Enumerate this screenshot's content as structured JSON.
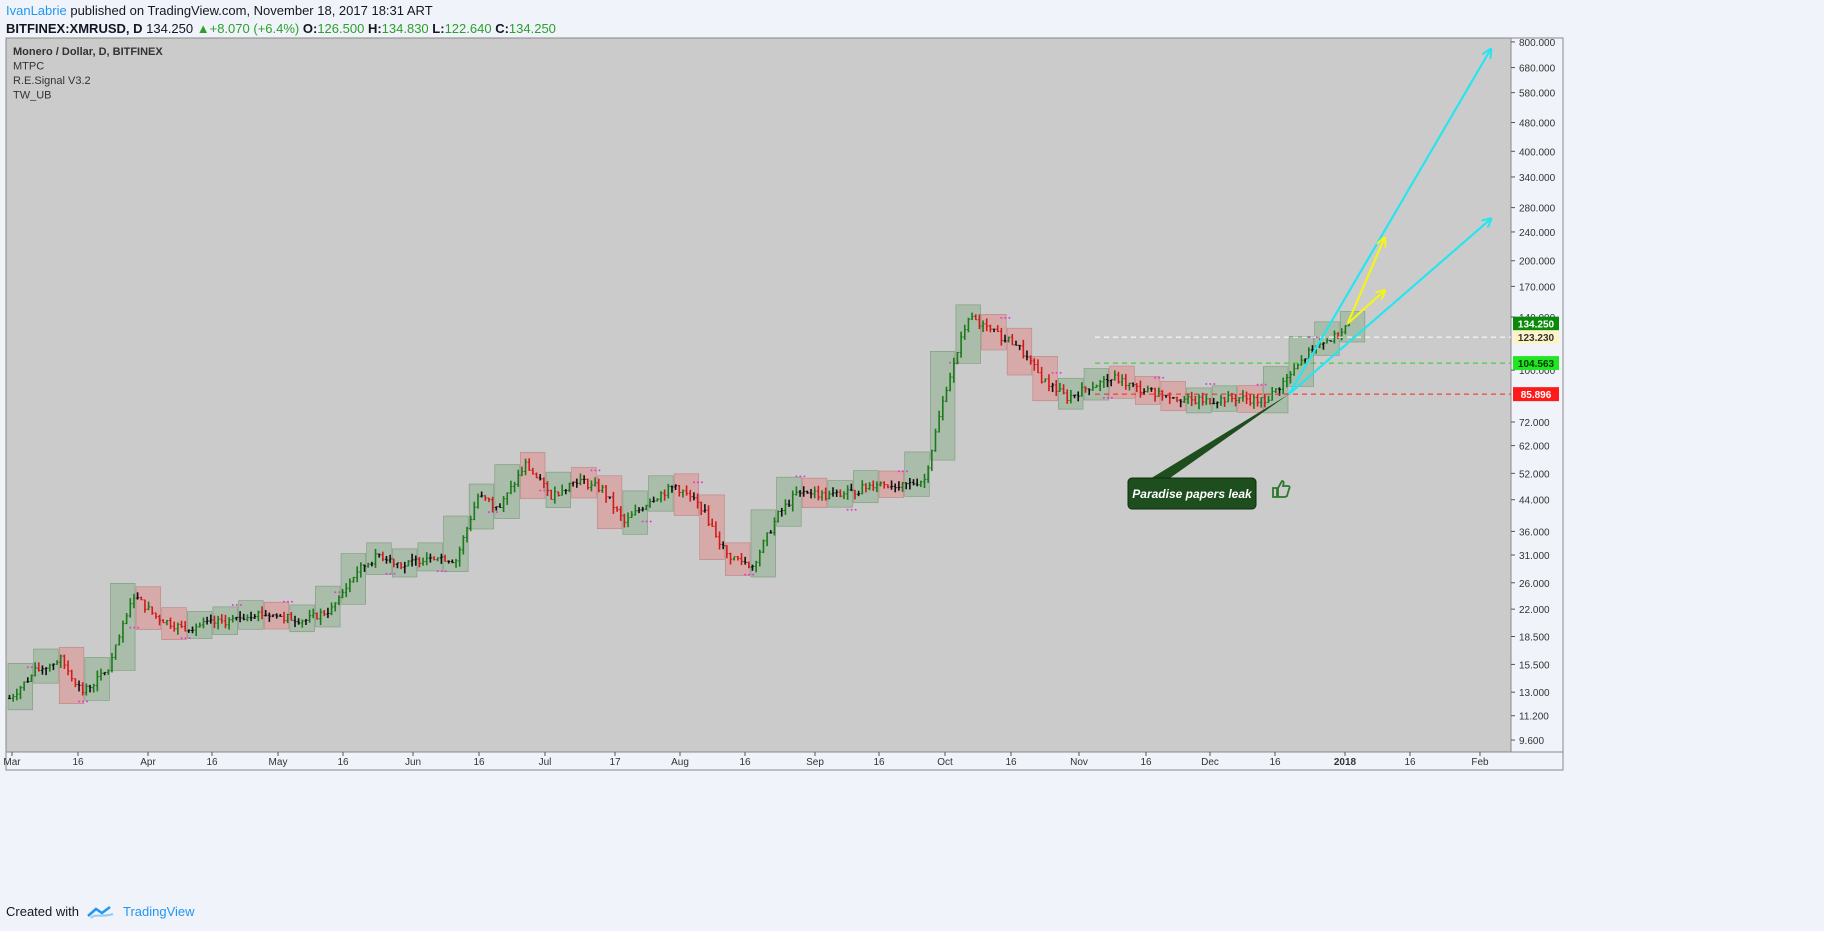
{
  "header": {
    "author": "IvanLabrie",
    "published_text": "published on TradingView.com, November 18, 2017 18:31 ART",
    "symbol": "BITFINEX:XMRUSD, D",
    "last": "134.250",
    "change": "+8.070 (+6.4%)",
    "o_label": "O:",
    "o": "126.500",
    "h_label": "H:",
    "h": "134.830",
    "l_label": "L:",
    "l": "122.640",
    "c_label": "C:",
    "c": "134.250"
  },
  "legend": [
    "Monero / Dollar, D, BITFINEX",
    "MTPC",
    "R.E.Signal V3.2",
    "TW_UB"
  ],
  "footer": {
    "created_with": "Created with",
    "brand": "TradingView"
  },
  "annotation": {
    "text": "Paradise papers leak"
  },
  "colors": {
    "up": "#1b7a1b",
    "down": "#d11b1b",
    "neutral": "#111111",
    "background": "#cbcbcb",
    "cyan": "#26e5f0",
    "yellow": "#f4f41a",
    "dots": "#e040d0",
    "green_box": "rgba(110,160,110,0.35)",
    "red_box": "rgba(230,130,130,0.45)"
  },
  "chart_data": {
    "type": "candlestick",
    "y_scale": "log",
    "ylim": [
      8.9,
      820
    ],
    "y_ticks": [
      "800.000",
      "680.000",
      "580.000",
      "480.000",
      "400.000",
      "340.000",
      "280.000",
      "240.000",
      "200.000",
      "170.000",
      "140.000",
      "100.000",
      "72.000",
      "62.000",
      "52.000",
      "44.000",
      "36.000",
      "31.000",
      "26.000",
      "22.000",
      "18.500",
      "15.500",
      "13.000",
      "11.200",
      "9.600"
    ],
    "x_ticks": [
      "Mar",
      "16",
      "Apr",
      "16",
      "May",
      "16",
      "Jun",
      "16",
      "Jul",
      "17",
      "Aug",
      "16",
      "Sep",
      "16",
      "Oct",
      "16",
      "Nov",
      "16",
      "Dec",
      "16",
      "2018",
      "16",
      "Feb"
    ],
    "price_labels": [
      {
        "label": "134.250",
        "value": 134.25,
        "bg": "#0a8a0a",
        "fg": "#ffffff",
        "line": false
      },
      {
        "label": "123.230",
        "value": 123.23,
        "bg": "#fdf3c8",
        "fg": "#333333",
        "line": "#ffffff"
      },
      {
        "label": "104.563",
        "value": 104.563,
        "bg": "#22e622",
        "fg": "#0a3a0a",
        "line": "#2ad02a"
      },
      {
        "label": "85.896",
        "value": 85.896,
        "bg": "#ff1a1a",
        "fg": "#ffffff",
        "line": "#ff2020"
      }
    ],
    "series": [
      {
        "name": "XMRUSD",
        "points": [
          [
            0,
            12.5
          ],
          [
            7,
            14.8
          ],
          [
            14,
            16
          ],
          [
            20,
            13
          ],
          [
            27,
            15
          ],
          [
            34,
            24
          ],
          [
            40,
            21
          ],
          [
            47,
            19.5
          ],
          [
            54,
            20
          ],
          [
            61,
            20.5
          ],
          [
            67,
            21.5
          ],
          [
            74,
            21
          ],
          [
            81,
            20.5
          ],
          [
            88,
            22
          ],
          [
            95,
            28
          ],
          [
            101,
            31
          ],
          [
            108,
            29
          ],
          [
            115,
            31
          ],
          [
            122,
            30
          ],
          [
            128,
            45
          ],
          [
            134,
            42
          ],
          [
            141,
            55
          ],
          [
            148,
            45
          ],
          [
            155,
            50
          ],
          [
            162,
            47
          ],
          [
            168,
            38
          ],
          [
            175,
            44
          ],
          [
            182,
            48
          ],
          [
            189,
            42
          ],
          [
            196,
            31
          ],
          [
            203,
            29
          ],
          [
            210,
            40
          ],
          [
            216,
            47
          ],
          [
            223,
            45
          ],
          [
            230,
            46
          ],
          [
            237,
            49
          ],
          [
            244,
            48
          ],
          [
            250,
            50
          ],
          [
            256,
            90
          ],
          [
            262,
            140
          ],
          [
            268,
            128
          ],
          [
            275,
            118
          ],
          [
            282,
            95
          ],
          [
            289,
            84
          ],
          [
            295,
            90
          ],
          [
            302,
            95
          ],
          [
            309,
            88
          ],
          [
            316,
            86
          ],
          [
            323,
            82
          ],
          [
            330,
            83
          ],
          [
            336,
            84
          ],
          [
            343,
            82
          ],
          [
            350,
            97
          ],
          [
            357,
            118
          ],
          [
            362,
            123
          ],
          [
            366,
            134.25
          ]
        ]
      }
    ],
    "projections": [
      {
        "color": "cyan",
        "from": [
          350,
          85.9
        ],
        "to": [
          405,
          760
        ]
      },
      {
        "color": "cyan",
        "from": [
          350,
          85.9
        ],
        "to": [
          405,
          260
        ]
      },
      {
        "color": "yellow",
        "from": [
          366,
          134.25
        ],
        "to": [
          376,
          230
        ]
      },
      {
        "color": "yellow",
        "from": [
          366,
          134.25
        ],
        "to": [
          376,
          165
        ]
      }
    ]
  }
}
